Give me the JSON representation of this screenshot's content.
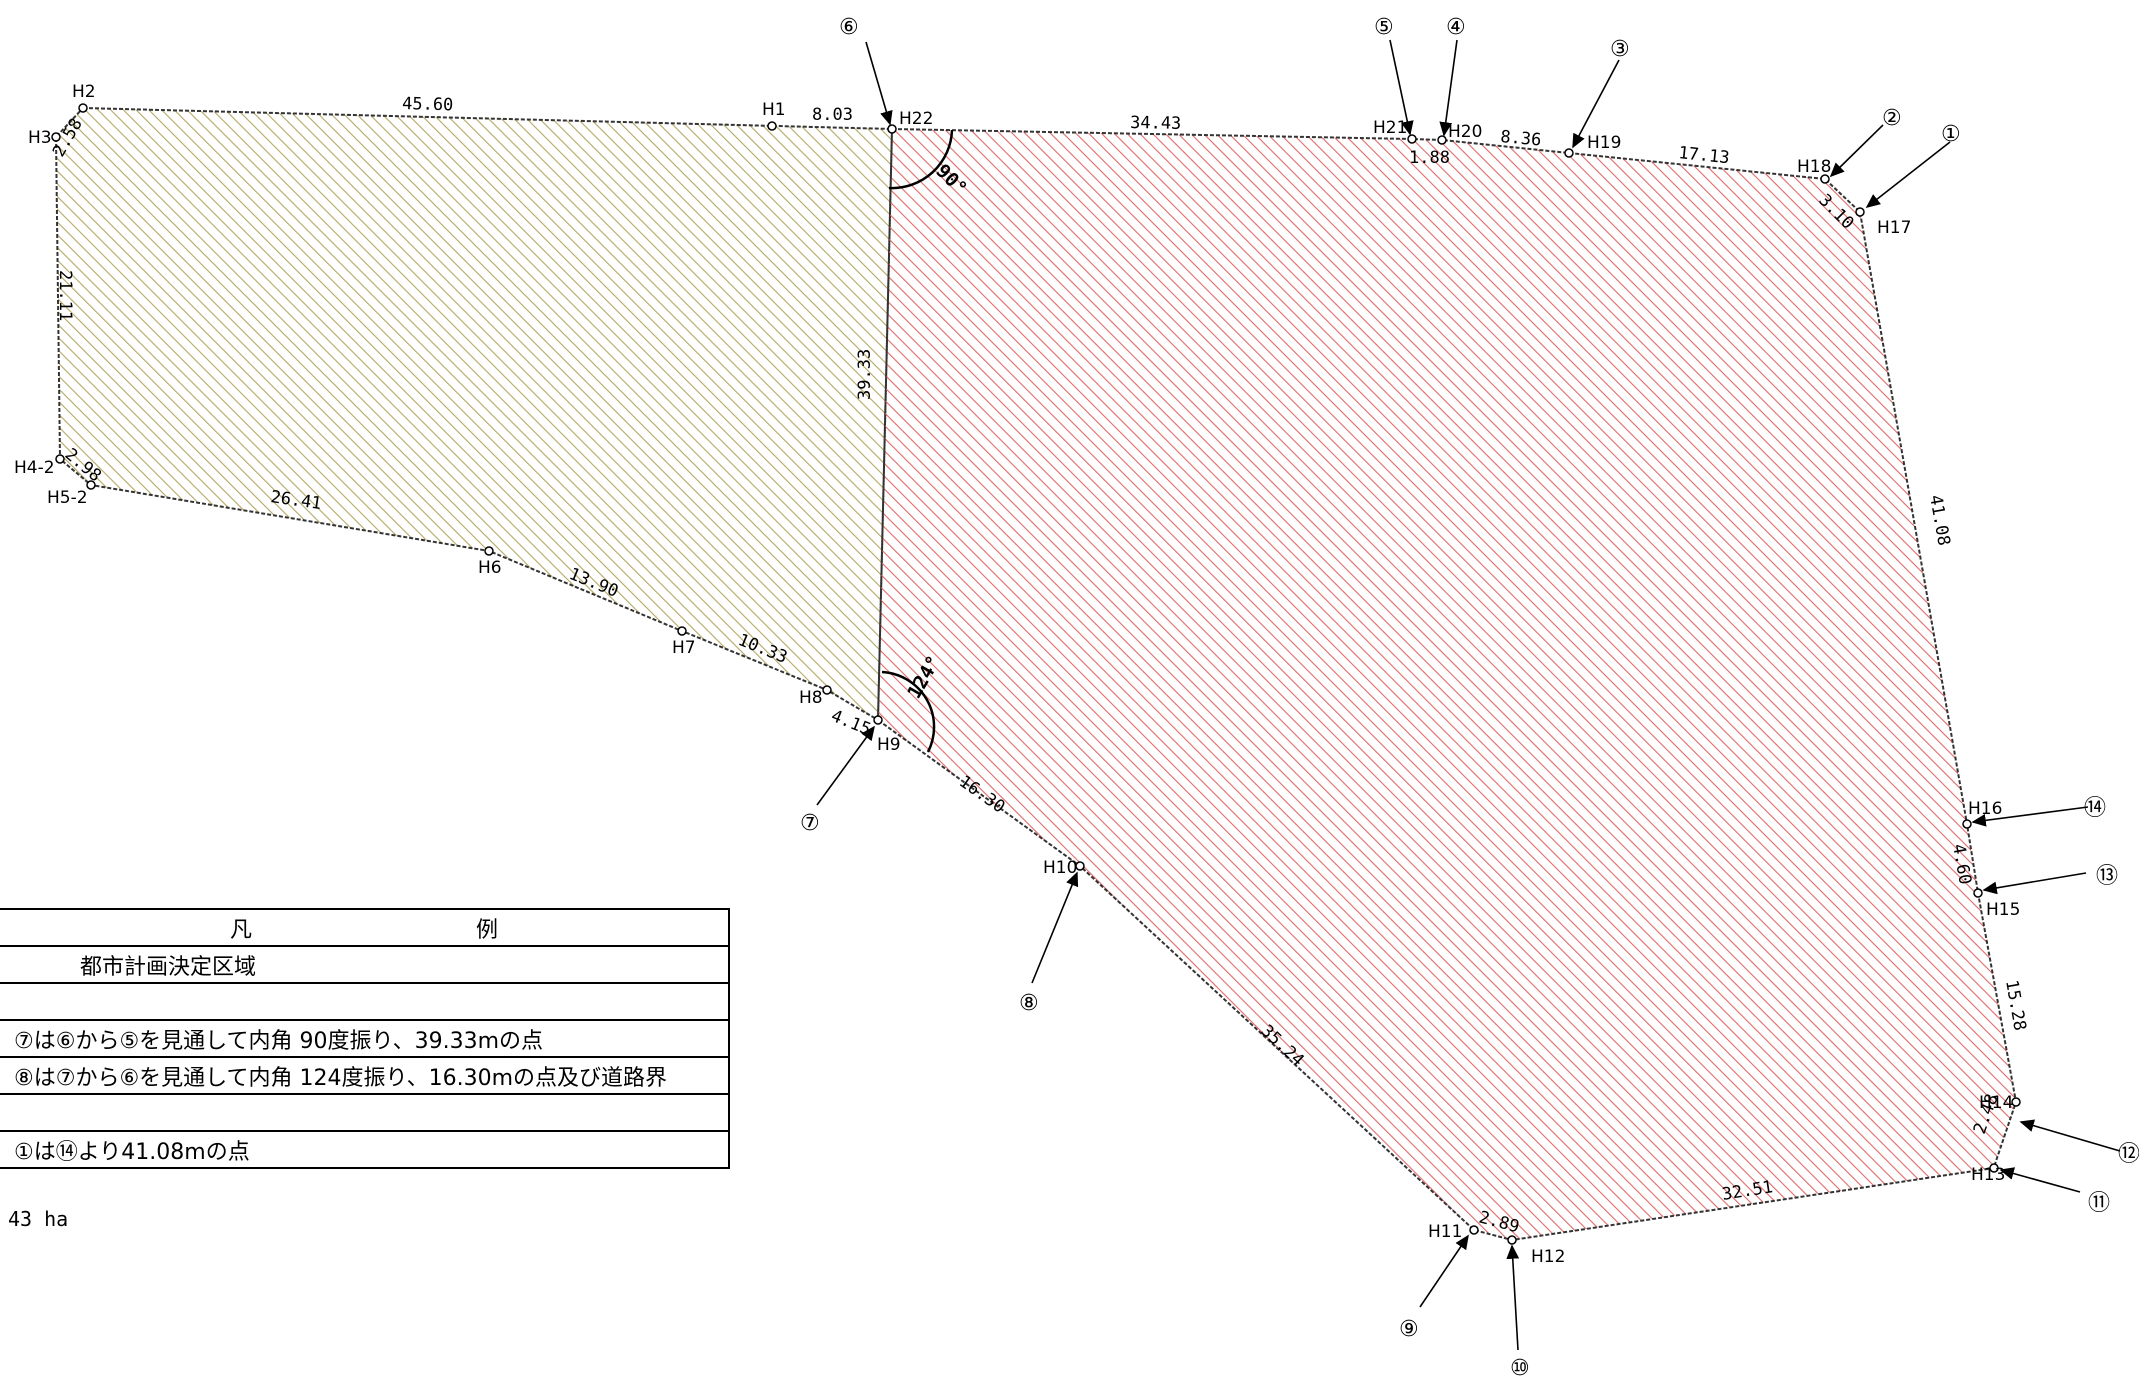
{
  "points": {
    "H1": "H1",
    "H2": "H2",
    "H3": "H3",
    "H4_2": "H4-2",
    "H5_2": "H5-2",
    "H6": "H6",
    "H7": "H7",
    "H8": "H8",
    "H9": "H9",
    "H10": "H10",
    "H11": "H11",
    "H12": "H12",
    "H13": "H13",
    "H14": "H14",
    "H15": "H15",
    "H16": "H16",
    "H17": "H17",
    "H18": "H18",
    "H19": "H19",
    "H20": "H20",
    "H21": "H21",
    "H22": "H22"
  },
  "dimensions": {
    "h2_h1": "45.60",
    "h1_h22": "8.03",
    "h3_h2": "2.58",
    "h3_h4": "21.11",
    "h4_h5": "2.98",
    "h5_h6": "26.41",
    "h6_h7": "13.90",
    "h7_h8": "10.33",
    "h8_h9": "4.15",
    "h22_h9": "39.33",
    "h22_h21": "34.43",
    "h21_h20": "1.88",
    "h20_h19": "8.36",
    "h19_h18": "17.13",
    "h18_h17": "3.10",
    "h17_h16": "41.08",
    "h16_h15": "4.60",
    "h15_h14": "15.28",
    "h14_h13": "2.48",
    "h13_h12": "32.51",
    "h12_h11": "2.89",
    "h11_h10": "35.24",
    "h10_h9": "16.30"
  },
  "angles": {
    "a90": "90°",
    "a124": "124°"
  },
  "callouts": [
    "①",
    "②",
    "③",
    "④",
    "⑤",
    "⑥",
    "⑦",
    "⑧",
    "⑨",
    "⑩",
    "⑪",
    "⑫",
    "⑬",
    "⑭"
  ],
  "legend": {
    "title": "凡　　例",
    "rows": [
      "都市計画決定区域",
      "",
      "⑦は⑥から⑤を見通して内角 90度振り、39.33mの点",
      "⑧は⑦から⑥を見通して内角 124度振り、16.30mの点及び道路界",
      "",
      "①は⑭より41.08mの点"
    ]
  },
  "area_note": "43 ha",
  "colors": {
    "red_hatch": "#e06060",
    "olive_hatch": "#b0a060",
    "outline": "#333333"
  }
}
